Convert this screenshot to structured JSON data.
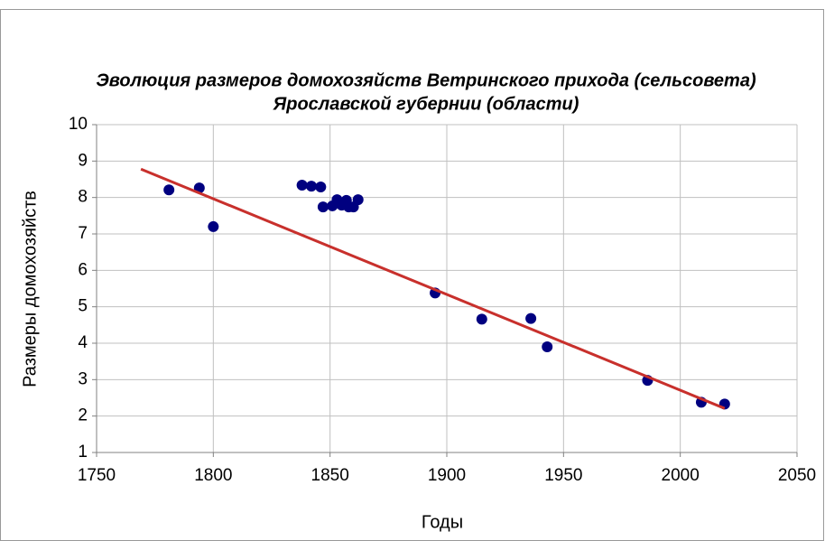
{
  "chart_data": {
    "type": "scatter",
    "title": [
      "Эволюция размеров домохозяйств Ветринского прихода (сельсовета)",
      "Ярославской губернии (области)"
    ],
    "xlabel": "Годы",
    "ylabel": "Размеры домохозяйств",
    "series": [
      {
        "color": "#000080",
        "x": [
          1781,
          1794,
          1800,
          1838,
          1842,
          1846,
          1847,
          1851,
          1853,
          1855,
          1857,
          1858,
          1860,
          1862,
          1895,
          1915,
          1936,
          1943,
          1986,
          2009,
          2019
        ],
        "values": [
          8.21,
          8.26,
          7.2,
          8.34,
          8.31,
          8.29,
          7.74,
          7.77,
          7.94,
          7.79,
          7.92,
          7.74,
          7.74,
          7.94,
          5.38,
          4.66,
          4.68,
          3.9,
          2.98,
          2.38,
          2.33
        ]
      }
    ],
    "trendline": {
      "color": "#c8302c",
      "x": [
        1769,
        2019
      ],
      "values": [
        8.78,
        2.21
      ]
    },
    "xlim": [
      1750,
      2050
    ],
    "xticks": [
      1750,
      1800,
      1850,
      1900,
      1950,
      2000,
      2050
    ],
    "ylim": [
      1,
      10
    ],
    "yticks": [
      1,
      2,
      3,
      4,
      5,
      6,
      7,
      8,
      9,
      10
    ],
    "grid": true
  }
}
